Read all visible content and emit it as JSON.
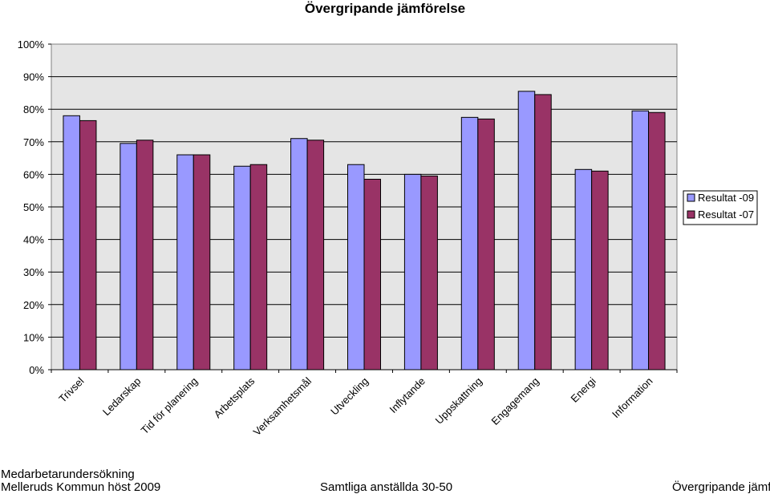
{
  "chart_data": {
    "type": "bar",
    "title": "Övergripande jämförelse",
    "categories": [
      "Trivsel",
      "Ledarskap",
      "Tid för planering",
      "Arbetsplats",
      "Verksamhetsmål",
      "Utveckling",
      "Inflytande",
      "Uppskattning",
      "Engagemang",
      "Energi",
      "Information"
    ],
    "series": [
      {
        "name": "Resultat -09",
        "color": "#9999FF",
        "values": [
          78,
          69.5,
          66,
          62.5,
          71,
          63,
          60,
          77.5,
          85.5,
          61.5,
          79.5
        ]
      },
      {
        "name": "Resultat -07",
        "color": "#993366",
        "values": [
          76.5,
          70.5,
          66,
          63,
          70.5,
          58.5,
          59.5,
          77,
          84.5,
          61,
          79
        ]
      }
    ],
    "ylim": [
      0,
      100
    ],
    "yticks": [
      "0%",
      "10%",
      "20%",
      "30%",
      "40%",
      "50%",
      "60%",
      "70%",
      "80%",
      "90%",
      "100%"
    ],
    "xlabel": "",
    "ylabel": "",
    "grid": true,
    "legend_position": "right",
    "plot_background": "#E5E5E5"
  },
  "footer": {
    "line1": "Medarbetarundersökning",
    "line2": "Melleruds Kommun höst 2009",
    "center": "Samtliga anställda 30-50",
    "right": "Övergripande jämf"
  }
}
